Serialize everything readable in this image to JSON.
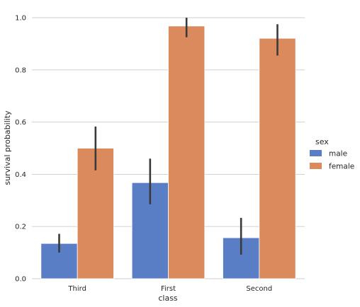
{
  "chart_data": {
    "type": "bar",
    "xlabel": "class",
    "ylabel": "survival probability",
    "ylim": [
      0,
      1.0
    ],
    "yticks": [
      0.0,
      0.2,
      0.4,
      0.6,
      0.8,
      1.0
    ],
    "ytick_labels": [
      "0.0",
      "0.2",
      "0.4",
      "0.6",
      "0.8",
      "1.0"
    ],
    "grid": "horizontal",
    "categories": [
      "Third",
      "First",
      "Second"
    ],
    "series": [
      {
        "name": "male",
        "color": "#5a7ec6",
        "values": [
          0.135,
          0.368,
          0.157
        ],
        "ci_low": [
          0.1,
          0.285,
          0.092
        ],
        "ci_high": [
          0.172,
          0.46,
          0.233
        ]
      },
      {
        "name": "female",
        "color": "#db8a5d",
        "values": [
          0.5,
          0.968,
          0.921
        ],
        "ci_low": [
          0.415,
          0.925,
          0.855
        ],
        "ci_high": [
          0.583,
          1.0,
          0.975
        ]
      }
    ],
    "legend": {
      "title": "sex",
      "placement": "right"
    }
  }
}
